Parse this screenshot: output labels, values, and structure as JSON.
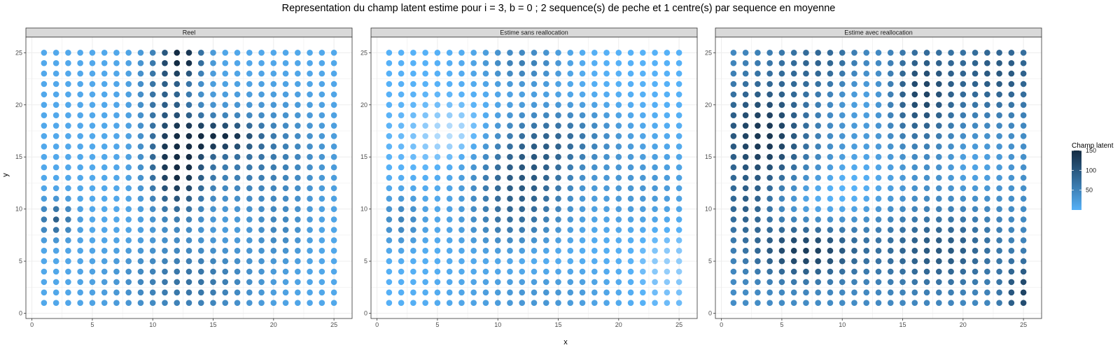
{
  "chart_data": {
    "type": "scatter",
    "title": "Representation du champ latent estime pour i = 3, b = 0 ; 2 sequence(s) de peche et 1 centre(s) par sequence en moyenne",
    "xlabel": "x",
    "ylabel": "y",
    "xlim": [
      -0.5,
      26.5
    ],
    "ylim": [
      -0.5,
      26.5
    ],
    "x_ticks": [
      0,
      5,
      10,
      15,
      20,
      25
    ],
    "y_ticks": [
      0,
      5,
      10,
      15,
      20,
      25
    ],
    "x_tick_labels": [
      "0",
      "5",
      "10",
      "15",
      "20",
      "25"
    ],
    "y_tick_labels": [
      "0",
      "5",
      "10",
      "15",
      "20",
      "25"
    ],
    "grid": true,
    "grid_points": {
      "x": [
        1,
        25
      ],
      "y": [
        1,
        25
      ]
    },
    "colors": {
      "low": "#56B1F7",
      "high": "#132B43",
      "strip_bg": "#d9d9d9",
      "panel_border": "#333333",
      "grid": "#ebebeb"
    },
    "legend": {
      "title": "Champ latent",
      "position": "right",
      "range": [
        0,
        150
      ],
      "ticks": [
        50,
        100,
        150
      ],
      "tick_labels": [
        "50",
        "100",
        "150"
      ]
    },
    "panels": [
      {
        "name": "Reel",
        "base": 10,
        "floor": 0,
        "min_value": 0,
        "blobs": [
          {
            "x": 12,
            "y": 14.5,
            "sx": 1.6,
            "sy": 3.5,
            "amp": 140
          },
          {
            "x": 12.5,
            "y": 24.5,
            "sx": 1.2,
            "sy": 1.3,
            "amp": 130
          },
          {
            "x": 11,
            "y": 22,
            "sx": 1.5,
            "sy": 2.8,
            "amp": 60
          },
          {
            "x": 15.5,
            "y": 17,
            "sx": 2.0,
            "sy": 1.0,
            "amp": 110
          },
          {
            "x": 18.5,
            "y": 15,
            "sx": 4.0,
            "sy": 3.5,
            "amp": 55
          },
          {
            "x": 13,
            "y": 3,
            "sx": 4.0,
            "sy": 2.5,
            "amp": 60
          },
          {
            "x": 2,
            "y": 9,
            "sx": 1.0,
            "sy": 1.2,
            "amp": 80
          },
          {
            "x": 20.5,
            "y": 8,
            "sx": 1.5,
            "sy": 2.0,
            "amp": 30
          }
        ]
      },
      {
        "name": "Estime sans reallocation",
        "base": 0,
        "floor": 0,
        "min_value": -20,
        "blobs": [
          {
            "x": 12,
            "y": 13.5,
            "sx": 3.0,
            "sy": 3.5,
            "amp": 95
          },
          {
            "x": 12,
            "y": 24,
            "sx": 2.5,
            "sy": 1.5,
            "amp": 55
          },
          {
            "x": 11,
            "y": 8,
            "sx": 3.0,
            "sy": 2.5,
            "amp": 40
          },
          {
            "x": 16,
            "y": 17,
            "sx": 3.0,
            "sy": 2.0,
            "amp": 50
          },
          {
            "x": 2,
            "y": 9,
            "sx": 1.3,
            "sy": 1.8,
            "amp": 50
          },
          {
            "x": 22,
            "y": 12,
            "sx": 3.0,
            "sy": 3.0,
            "amp": 30
          },
          {
            "x": 13,
            "y": 2,
            "sx": 4.5,
            "sy": 2.0,
            "amp": 35
          },
          {
            "x": 7,
            "y": 17,
            "sx": 2.5,
            "sy": 2.0,
            "amp": -30
          },
          {
            "x": 12,
            "y": 5,
            "sx": 3.0,
            "sy": 2.0,
            "amp": -25
          },
          {
            "x": 24,
            "y": 5,
            "sx": 2.0,
            "sy": 3.0,
            "amp": -15
          }
        ]
      },
      {
        "name": "Estime avec reallocation",
        "base": 40,
        "floor": 0,
        "min_value": 0,
        "blobs": [
          {
            "x": 3.5,
            "y": 17,
            "sx": 2.5,
            "sy": 3.5,
            "amp": 100
          },
          {
            "x": 7,
            "y": 6,
            "sx": 3.0,
            "sy": 1.8,
            "amp": 90
          },
          {
            "x": 16.5,
            "y": 21,
            "sx": 1.8,
            "sy": 3.0,
            "amp": 80
          },
          {
            "x": 23,
            "y": 23,
            "sx": 3.0,
            "sy": 2.5,
            "amp": 60
          },
          {
            "x": 18,
            "y": 6,
            "sx": 3.5,
            "sy": 2.5,
            "amp": 60
          },
          {
            "x": 25,
            "y": 2,
            "sx": 1.2,
            "sy": 2.0,
            "amp": 80
          },
          {
            "x": 9,
            "y": 24,
            "sx": 3.0,
            "sy": 2.0,
            "amp": 50
          },
          {
            "x": 2,
            "y": 10,
            "sx": 1.5,
            "sy": 2.0,
            "amp": 40
          },
          {
            "x": 12,
            "y": 22,
            "sx": 2.0,
            "sy": 3.0,
            "amp": -35
          },
          {
            "x": 8,
            "y": 11,
            "sx": 2.5,
            "sy": 2.0,
            "amp": -35
          },
          {
            "x": 12,
            "y": 13,
            "sx": 2.5,
            "sy": 2.5,
            "amp": -30
          },
          {
            "x": 21,
            "y": 14,
            "sx": 2.0,
            "sy": 2.0,
            "amp": -25
          }
        ]
      }
    ]
  }
}
